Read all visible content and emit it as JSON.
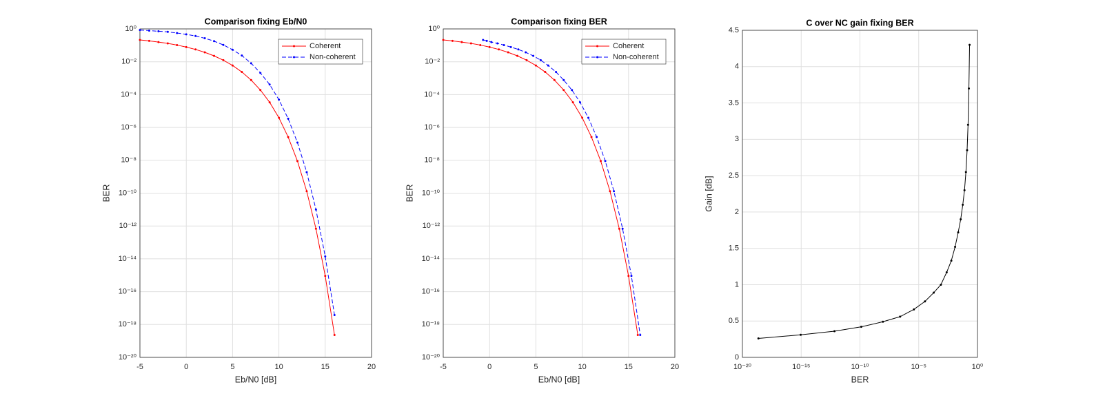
{
  "chart_data": [
    {
      "type": "line",
      "title": "Comparison fixing Eb/N0",
      "xlabel": "Eb/N0 [dB]",
      "ylabel": "BER",
      "x": [
        -5,
        -4,
        -3,
        -2,
        -1,
        0,
        1,
        2,
        3,
        4,
        5,
        6,
        7,
        8,
        9,
        10,
        11,
        12,
        13,
        14,
        15,
        16
      ],
      "series": [
        {
          "name": "Coherent",
          "color": "#ff0000",
          "dashed": false,
          "values": [
            0.213,
            0.186,
            0.158,
            0.131,
            0.104,
            0.0786,
            0.0563,
            0.0375,
            0.0229,
            0.0125,
            0.00595,
            0.00239,
            0.00077,
            0.00019,
            3.4e-05,
            3.9e-06,
            2.6e-07,
            9e-09,
            1.3e-10,
            6.8e-13,
            9.1e-16,
            2.3e-19
          ]
        },
        {
          "name": "Non-coherent",
          "color": "#0000ff",
          "dashed": true,
          "values": [
            0.85,
            0.79,
            0.72,
            0.66,
            0.56,
            0.47,
            0.37,
            0.27,
            0.18,
            0.106,
            0.054,
            0.0239,
            0.0081,
            0.0021,
            0.00041,
            4.9e-05,
            3.4e-06,
            1.2e-07,
            1.9e-09,
            1e-11,
            1.4e-14,
            3.8e-18
          ]
        }
      ],
      "xlim": [
        -5,
        20
      ],
      "xticks": [
        -5,
        0,
        5,
        10,
        15,
        20
      ],
      "ylim": [
        1e-20,
        1
      ],
      "ylog": true,
      "yticks": [
        {
          "value": 1e-20,
          "label": "10⁻²⁰"
        },
        {
          "value": 1e-18,
          "label": "10⁻¹⁸"
        },
        {
          "value": 1e-16,
          "label": "10⁻¹⁶"
        },
        {
          "value": 1e-14,
          "label": "10⁻¹⁴"
        },
        {
          "value": 1e-12,
          "label": "10⁻¹²"
        },
        {
          "value": 1e-10,
          "label": "10⁻¹⁰"
        },
        {
          "value": 1e-08,
          "label": "10⁻⁸"
        },
        {
          "value": 1e-06,
          "label": "10⁻⁶"
        },
        {
          "value": 0.0001,
          "label": "10⁻⁴"
        },
        {
          "value": 0.01,
          "label": "10⁻²"
        },
        {
          "value": 1,
          "label": "10⁰"
        }
      ],
      "grid": true,
      "legend": "northeast"
    },
    {
      "type": "line",
      "title": "Comparison fixing BER",
      "xlabel": "Eb/N0 [dB]",
      "ylabel": "BER",
      "series": [
        {
          "name": "Coherent",
          "color": "#ff0000",
          "dashed": false,
          "x": [
            -5,
            -4,
            -3,
            -2,
            -1,
            0,
            1,
            2,
            3,
            4,
            5,
            6,
            7,
            8,
            9,
            10,
            11,
            12,
            13,
            14,
            15,
            16
          ],
          "values": [
            0.213,
            0.186,
            0.158,
            0.131,
            0.104,
            0.0786,
            0.0563,
            0.0375,
            0.0229,
            0.0125,
            0.00595,
            0.00239,
            0.00077,
            0.00019,
            3.4e-05,
            3.9e-06,
            2.6e-07,
            9e-09,
            1.3e-10,
            6.8e-13,
            9.1e-16,
            2.3e-19
          ]
        },
        {
          "name": "Non-coherent",
          "color": "#0000ff",
          "dashed": true,
          "x": [
            -0.7,
            -0.3,
            0.2,
            0.85,
            1.55,
            2.3,
            3.1,
            3.9,
            4.72,
            5.52,
            6.33,
            7.17,
            8.0,
            8.89,
            9.77,
            10.66,
            11.56,
            12.49,
            13.42,
            14.36,
            15.31,
            16.26
          ],
          "values": [
            0.213,
            0.186,
            0.158,
            0.131,
            0.104,
            0.0786,
            0.0563,
            0.0375,
            0.0229,
            0.0125,
            0.00595,
            0.00239,
            0.00077,
            0.00019,
            3.4e-05,
            3.9e-06,
            2.6e-07,
            9e-09,
            1.3e-10,
            6.8e-13,
            9.1e-16,
            2.3e-19
          ]
        }
      ],
      "xlim": [
        -5,
        20
      ],
      "xticks": [
        -5,
        0,
        5,
        10,
        15,
        20
      ],
      "ylim": [
        1e-20,
        1
      ],
      "ylog": true,
      "yticks": [
        {
          "value": 1e-20,
          "label": "10⁻²⁰"
        },
        {
          "value": 1e-18,
          "label": "10⁻¹⁸"
        },
        {
          "value": 1e-16,
          "label": "10⁻¹⁶"
        },
        {
          "value": 1e-14,
          "label": "10⁻¹⁴"
        },
        {
          "value": 1e-12,
          "label": "10⁻¹²"
        },
        {
          "value": 1e-10,
          "label": "10⁻¹⁰"
        },
        {
          "value": 1e-08,
          "label": "10⁻⁸"
        },
        {
          "value": 1e-06,
          "label": "10⁻⁶"
        },
        {
          "value": 0.0001,
          "label": "10⁻⁴"
        },
        {
          "value": 0.01,
          "label": "10⁻²"
        },
        {
          "value": 1,
          "label": "10⁰"
        }
      ],
      "grid": true,
      "legend": "northeast"
    },
    {
      "type": "line",
      "title": "C over NC gain fixing BER",
      "xlabel": "BER",
      "ylabel": "Gain [dB]",
      "x": [
        0.213,
        0.186,
        0.158,
        0.131,
        0.104,
        0.0786,
        0.0563,
        0.0375,
        0.0229,
        0.0125,
        0.00595,
        0.00239,
        0.00077,
        0.00019,
        3.4e-05,
        3.9e-06,
        2.6e-07,
        9e-09,
        1.3e-10,
        6.8e-13,
        9.1e-16,
        2.3e-19
      ],
      "series": [
        {
          "color": "#000000",
          "dashed": false,
          "values": [
            4.3,
            3.7,
            3.2,
            2.85,
            2.55,
            2.3,
            2.1,
            1.9,
            1.72,
            1.52,
            1.33,
            1.17,
            1.0,
            0.89,
            0.77,
            0.66,
            0.56,
            0.49,
            0.42,
            0.36,
            0.31,
            0.26
          ]
        }
      ],
      "xlim": [
        1e-20,
        1
      ],
      "xlog": true,
      "xticks": [
        {
          "value": 1e-20,
          "label": "10⁻²⁰"
        },
        {
          "value": 1e-15,
          "label": "10⁻¹⁵"
        },
        {
          "value": 1e-10,
          "label": "10⁻¹⁰"
        },
        {
          "value": 1e-05,
          "label": "10⁻⁵"
        },
        {
          "value": 1,
          "label": "10⁰"
        }
      ],
      "ylim": [
        0,
        4.5
      ],
      "yticks": [
        0,
        0.5,
        1,
        1.5,
        2,
        2.5,
        3,
        3.5,
        4,
        4.5
      ],
      "grid": true
    }
  ]
}
